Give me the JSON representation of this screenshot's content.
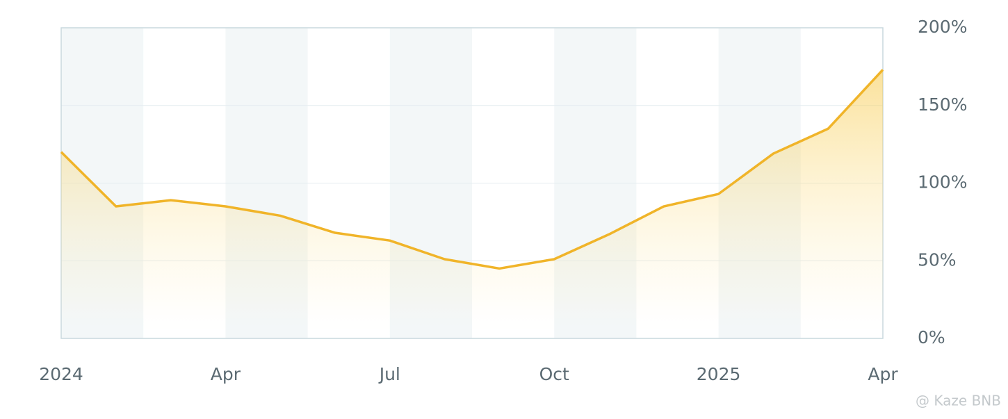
{
  "chart_data": {
    "type": "line",
    "x": [
      "2024-01",
      "2024-02",
      "2024-03",
      "2024-04",
      "2024-05",
      "2024-06",
      "2024-07",
      "2024-08",
      "2024-09",
      "2024-10",
      "2024-11",
      "2024-12",
      "2025-01",
      "2025-02",
      "2025-03",
      "2025-04"
    ],
    "series": [
      {
        "color": "#f0b429",
        "values": [
          120,
          85,
          89,
          85,
          79,
          68,
          63,
          51,
          45,
          51,
          67,
          85,
          93,
          119,
          135,
          173
        ]
      }
    ],
    "xlim": [
      "2024-01",
      "2025-04"
    ],
    "xticks": [
      {
        "value": "2024-01",
        "label": "2024"
      },
      {
        "value": "2024-04",
        "label": "Apr"
      },
      {
        "value": "2024-07",
        "label": "Jul"
      },
      {
        "value": "2024-10",
        "label": "Oct"
      },
      {
        "value": "2025-01",
        "label": "2025"
      },
      {
        "value": "2025-04",
        "label": "Apr"
      }
    ],
    "ylim": [
      0,
      200
    ],
    "yticks": [
      {
        "value": 0,
        "label": "0%"
      },
      {
        "value": 50,
        "label": "50%"
      },
      {
        "value": 100,
        "label": "100%"
      },
      {
        "value": 150,
        "label": "150%"
      },
      {
        "value": 200,
        "label": "200%"
      }
    ],
    "grid": true,
    "watermark": "@ Kaze BNB"
  }
}
